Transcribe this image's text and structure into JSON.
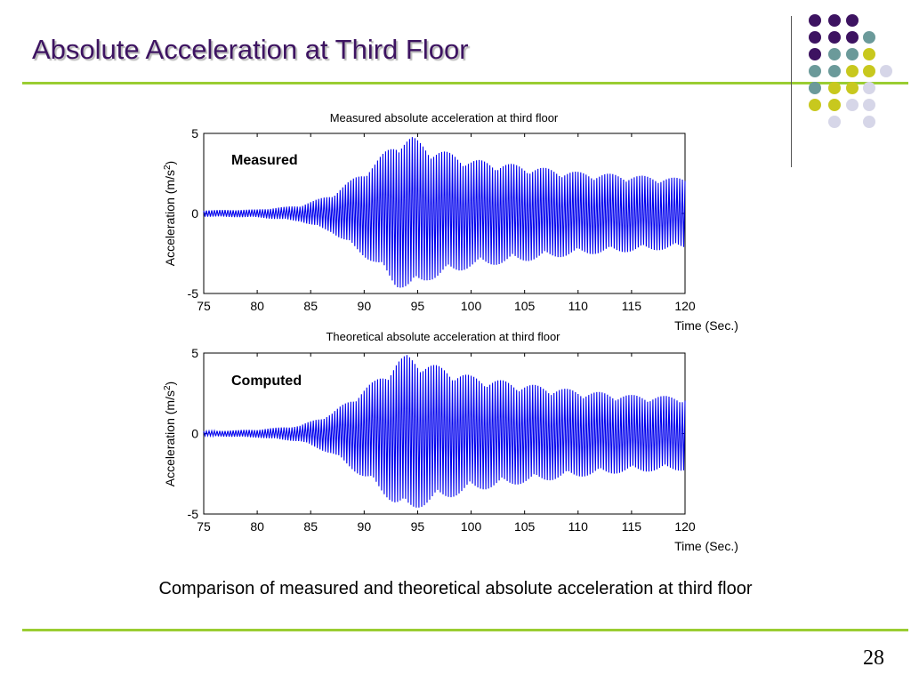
{
  "slide": {
    "title": "Absolute Acceleration at Third Floor",
    "caption": "Comparison of measured and theoretical absolute acceleration at third floor",
    "page_number": "28"
  },
  "colors": {
    "title": "#3d1361",
    "rule": "#9acd32",
    "series": "#0000ee",
    "dot_purple": "#3d1361",
    "dot_teal": "#6b9a9a",
    "dot_yellow": "#c8c81e",
    "dot_lavender": "#d6d6e8"
  },
  "decoration_dots": [
    [
      "purple",
      "purple",
      "purple",
      ""
    ],
    [
      "purple",
      "purple",
      "purple",
      "teal"
    ],
    [
      "purple",
      "teal",
      "teal",
      "yellow"
    ],
    [
      "teal",
      "teal",
      "yellow",
      "yellow",
      "lavender"
    ],
    [
      "teal",
      "yellow",
      "yellow",
      "lavender",
      ""
    ],
    [
      "yellow",
      "yellow",
      "lavender",
      "lavender",
      ""
    ],
    [
      "",
      "lavender",
      "",
      "lavender",
      ""
    ]
  ],
  "chart_data": [
    {
      "type": "line",
      "title": "Measured absolute acceleration at third floor",
      "xlabel": "Time (Sec.)",
      "ylabel": "Acceleration (m/s",
      "ylabel_sup": "2",
      "ylabel_close": ")",
      "annotation": "Measured",
      "xlim": [
        75,
        120
      ],
      "ylim": [
        -5,
        5
      ],
      "xticks": [
        "75",
        "80",
        "85",
        "90",
        "95",
        "100",
        "105",
        "110",
        "115",
        "120"
      ],
      "yticks": [
        "5",
        "0",
        "-5"
      ],
      "grid": false,
      "series": [
        {
          "dt": 0.25,
          "x_start": 75,
          "envelope": [
            {
              "x": 75,
              "y": 0.2
            },
            {
              "x": 80,
              "y": 0.25
            },
            {
              "x": 84,
              "y": 0.5
            },
            {
              "x": 87,
              "y": 1.2
            },
            {
              "x": 89,
              "y": 2.2
            },
            {
              "x": 91,
              "y": 3.2
            },
            {
              "x": 93,
              "y": 4.6
            },
            {
              "x": 94.5,
              "y": 4.8
            },
            {
              "x": 96,
              "y": 4.2
            },
            {
              "x": 100,
              "y": 3.4
            },
            {
              "x": 105,
              "y": 3.0
            },
            {
              "x": 110,
              "y": 2.6
            },
            {
              "x": 115,
              "y": 2.4
            },
            {
              "x": 120,
              "y": 2.2
            }
          ]
        }
      ]
    },
    {
      "type": "line",
      "title": "Theoretical absolute acceleration at third floor",
      "xlabel": "Time (Sec.)",
      "ylabel": "Acceleration (m/s",
      "ylabel_sup": "2",
      "ylabel_close": ")",
      "annotation": "Computed",
      "xlim": [
        75,
        120
      ],
      "ylim": [
        -5,
        5
      ],
      "xticks": [
        "75",
        "80",
        "85",
        "90",
        "95",
        "100",
        "105",
        "110",
        "115",
        "120"
      ],
      "yticks": [
        "5",
        "0",
        "-5"
      ],
      "grid": false,
      "series": [
        {
          "dt": 0.25,
          "x_start": 75,
          "envelope": [
            {
              "x": 75,
              "y": 0.15
            },
            {
              "x": 80,
              "y": 0.25
            },
            {
              "x": 84,
              "y": 0.5
            },
            {
              "x": 87,
              "y": 1.3
            },
            {
              "x": 89,
              "y": 2.3
            },
            {
              "x": 91,
              "y": 3.3
            },
            {
              "x": 93,
              "y": 4.5
            },
            {
              "x": 94,
              "y": 4.9
            },
            {
              "x": 96,
              "y": 4.4
            },
            {
              "x": 100,
              "y": 3.6
            },
            {
              "x": 105,
              "y": 3.1
            },
            {
              "x": 110,
              "y": 2.7
            },
            {
              "x": 115,
              "y": 2.4
            },
            {
              "x": 120,
              "y": 2.3
            }
          ]
        }
      ]
    }
  ]
}
